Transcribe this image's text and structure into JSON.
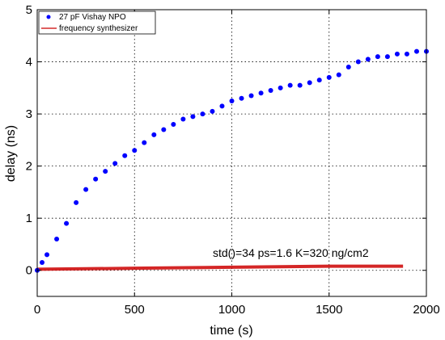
{
  "chart_data": {
    "type": "scatter",
    "title": "",
    "xlabel": "time (s)",
    "ylabel": "delay (ns)",
    "xlim": [
      0,
      2000
    ],
    "ylim": [
      -0.5,
      5
    ],
    "xticks": [
      0,
      500,
      1000,
      1500,
      2000
    ],
    "yticks": [
      0,
      1,
      2,
      3,
      4,
      5
    ],
    "xtick_labels": [
      "0",
      "500",
      "1000",
      "1500",
      "2000"
    ],
    "ytick_labels": [
      "0",
      "1",
      "2",
      "3",
      "4",
      "5"
    ],
    "grid": true,
    "legend_position": "top-left",
    "annotation": "std()=34 ps=1.6 K=320 ng/cm2",
    "series": [
      {
        "name": "27 pF Vishay NPO",
        "marker": "dot",
        "color": "#0000ff",
        "x": [
          0,
          25,
          50,
          100,
          150,
          200,
          250,
          300,
          350,
          400,
          450,
          500,
          550,
          600,
          650,
          700,
          750,
          800,
          850,
          900,
          950,
          1000,
          1050,
          1100,
          1150,
          1200,
          1250,
          1300,
          1350,
          1400,
          1450,
          1500,
          1550,
          1600,
          1650,
          1700,
          1750,
          1800,
          1850,
          1900,
          1950,
          2000
        ],
        "y": [
          0.0,
          0.15,
          0.3,
          0.6,
          0.9,
          1.3,
          1.55,
          1.75,
          1.9,
          2.05,
          2.2,
          2.3,
          2.45,
          2.6,
          2.7,
          2.8,
          2.9,
          2.95,
          3.0,
          3.05,
          3.15,
          3.25,
          3.3,
          3.35,
          3.4,
          3.45,
          3.5,
          3.55,
          3.55,
          3.6,
          3.65,
          3.7,
          3.75,
          3.9,
          4.0,
          4.05,
          4.1,
          4.1,
          4.15,
          4.15,
          4.2,
          4.2
        ]
      },
      {
        "name": "frequency synthesizer",
        "marker": "line",
        "color": "#cc0000",
        "x": [
          0,
          250,
          500,
          750,
          1000,
          1250,
          1500,
          1750,
          1880
        ],
        "y": [
          0.02,
          0.03,
          0.04,
          0.05,
          0.06,
          0.07,
          0.08,
          0.08,
          0.08
        ]
      }
    ]
  }
}
